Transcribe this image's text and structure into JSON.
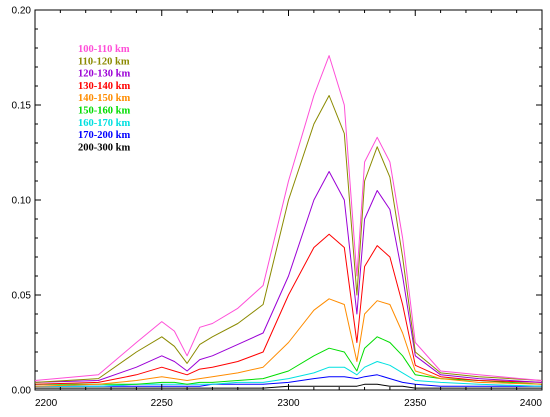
{
  "chart_data": {
    "type": "line",
    "title": "",
    "xlabel": "",
    "ylabel": "",
    "xlim": [
      2200,
      2400
    ],
    "ylim": [
      0,
      0.2
    ],
    "x_ticks": [
      2200,
      2250,
      2300,
      2350,
      2400
    ],
    "x_tick_labels": [
      "2200",
      "2250",
      "2300",
      "2350",
      "2400"
    ],
    "y_ticks": [
      0,
      0.05,
      0.1,
      0.15,
      0.2
    ],
    "y_tick_labels": [
      "0.00",
      "0.05",
      "0.10",
      "0.15",
      "0.20"
    ],
    "grid": false,
    "legend_position": "top-left",
    "x": [
      2200,
      2225,
      2240,
      2250,
      2255,
      2260,
      2265,
      2270,
      2280,
      2290,
      2300,
      2310,
      2316,
      2322,
      2327,
      2330,
      2335,
      2340,
      2345,
      2350,
      2360,
      2375,
      2400
    ],
    "series": [
      {
        "name": "100-110 km",
        "color": "#ff4fd8",
        "values": [
          0.005,
          0.008,
          0.025,
          0.036,
          0.031,
          0.018,
          0.033,
          0.035,
          0.043,
          0.055,
          0.11,
          0.155,
          0.176,
          0.15,
          0.06,
          0.12,
          0.133,
          0.12,
          0.08,
          0.025,
          0.01,
          0.008,
          0.005
        ]
      },
      {
        "name": "110-120 km",
        "color": "#8b8a00",
        "values": [
          0.004,
          0.006,
          0.02,
          0.028,
          0.023,
          0.014,
          0.024,
          0.028,
          0.035,
          0.045,
          0.1,
          0.14,
          0.155,
          0.135,
          0.05,
          0.11,
          0.128,
          0.112,
          0.07,
          0.02,
          0.009,
          0.007,
          0.005
        ]
      },
      {
        "name": "120-130 km",
        "color": "#9b00d6",
        "values": [
          0.004,
          0.005,
          0.012,
          0.018,
          0.015,
          0.01,
          0.016,
          0.018,
          0.024,
          0.03,
          0.06,
          0.1,
          0.115,
          0.1,
          0.04,
          0.09,
          0.105,
          0.095,
          0.06,
          0.018,
          0.008,
          0.006,
          0.004
        ]
      },
      {
        "name": "130-140 km",
        "color": "#ff0000",
        "values": [
          0.003,
          0.004,
          0.008,
          0.012,
          0.01,
          0.008,
          0.011,
          0.012,
          0.015,
          0.02,
          0.05,
          0.075,
          0.082,
          0.075,
          0.025,
          0.065,
          0.076,
          0.07,
          0.045,
          0.013,
          0.007,
          0.005,
          0.004
        ]
      },
      {
        "name": "140-150 km",
        "color": "#ff8c00",
        "values": [
          0.002,
          0.003,
          0.005,
          0.007,
          0.006,
          0.005,
          0.006,
          0.007,
          0.009,
          0.012,
          0.025,
          0.042,
          0.048,
          0.045,
          0.015,
          0.04,
          0.047,
          0.045,
          0.03,
          0.01,
          0.006,
          0.004,
          0.003
        ]
      },
      {
        "name": "150-160 km",
        "color": "#00dd00",
        "values": [
          0.003,
          0.003,
          0.003,
          0.004,
          0.004,
          0.003,
          0.004,
          0.004,
          0.005,
          0.006,
          0.01,
          0.018,
          0.022,
          0.02,
          0.01,
          0.022,
          0.028,
          0.025,
          0.018,
          0.008,
          0.006,
          0.005,
          0.003
        ]
      },
      {
        "name": "160-170 km",
        "color": "#00e0e0",
        "values": [
          0.002,
          0.002,
          0.003,
          0.003,
          0.003,
          0.003,
          0.003,
          0.003,
          0.004,
          0.004,
          0.006,
          0.009,
          0.012,
          0.012,
          0.008,
          0.012,
          0.015,
          0.013,
          0.009,
          0.005,
          0.004,
          0.003,
          0.002
        ]
      },
      {
        "name": "170-200 km",
        "color": "#0000ff",
        "values": [
          0.002,
          0.002,
          0.002,
          0.002,
          0.002,
          0.002,
          0.002,
          0.003,
          0.003,
          0.003,
          0.004,
          0.006,
          0.007,
          0.007,
          0.006,
          0.007,
          0.008,
          0.006,
          0.004,
          0.003,
          0.002,
          0.002,
          0.002
        ]
      },
      {
        "name": "200-300 km",
        "color": "#000000",
        "values": [
          0.001,
          0.001,
          0.001,
          0.001,
          0.001,
          0.001,
          0.001,
          0.001,
          0.001,
          0.001,
          0.002,
          0.002,
          0.002,
          0.002,
          0.002,
          0.003,
          0.003,
          0.002,
          0.002,
          0.001,
          0.001,
          0.001,
          0.001
        ]
      }
    ]
  }
}
